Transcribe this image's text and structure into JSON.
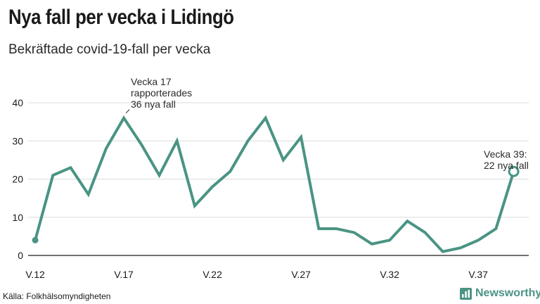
{
  "title": "Nya fall per vecka i Lidingö",
  "subtitle": "Bekräftade covid-19-fall per vecka",
  "source": "Källa: Folkhälsomyndigheten",
  "brand": {
    "name": "Newsworthy",
    "color": "#4a9484",
    "icon": "bar-chart-icon"
  },
  "chart_data": {
    "type": "line",
    "color": "#4a9484",
    "x": [
      12,
      13,
      14,
      15,
      16,
      17,
      18,
      19,
      20,
      21,
      22,
      23,
      24,
      25,
      26,
      27,
      28,
      29,
      30,
      31,
      32,
      33,
      34,
      35,
      36,
      37,
      38,
      39
    ],
    "series": [
      {
        "values": [
          4,
          21,
          23,
          16,
          28,
          36,
          29,
          21,
          30,
          13,
          18,
          22,
          30,
          36,
          25,
          31,
          7,
          7,
          6,
          3,
          4,
          9,
          6,
          1,
          2,
          4,
          7,
          22
        ]
      }
    ],
    "xticks": [
      12,
      17,
      22,
      27,
      32,
      37
    ],
    "xtick_labels": [
      "V.12",
      "V.17",
      "V.22",
      "V.27",
      "V.32",
      "V.37"
    ],
    "ylim": [
      0,
      40
    ],
    "yticks": [
      0,
      10,
      20,
      30,
      40
    ],
    "grid": true,
    "annotations": [
      {
        "x": 17,
        "y": 36,
        "lines": [
          "Vecka 17",
          "rapporterades",
          "36 nya fall"
        ]
      },
      {
        "x": 39,
        "y": 22,
        "lines": [
          "Vecka 39:",
          "22 nya fall"
        ]
      }
    ]
  }
}
